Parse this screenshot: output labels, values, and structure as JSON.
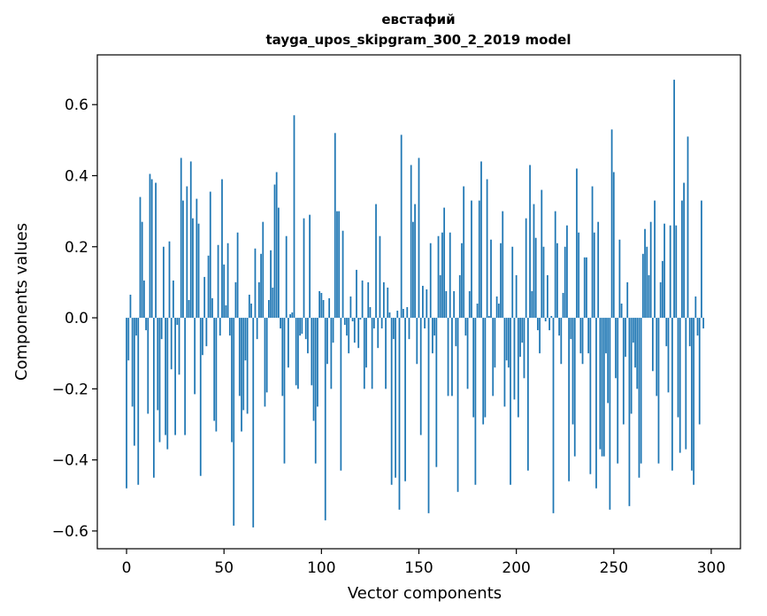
{
  "chart_data": {
    "type": "bar",
    "title": "евстафий",
    "subtitle": "tayga_upos_skipgram_300_2_2019 model",
    "xlabel": "Vector components",
    "ylabel": "Components values",
    "xlim": [
      -15,
      315
    ],
    "ylim": [
      -0.65,
      0.74
    ],
    "xticks": [
      0,
      50,
      100,
      150,
      200,
      250,
      300
    ],
    "yticks": [
      -0.6,
      -0.4,
      -0.2,
      0.0,
      0.2,
      0.4,
      0.6
    ],
    "ytick_labels": [
      "−0.6",
      "−0.4",
      "−0.2",
      "0.0",
      "0.2",
      "0.4",
      "0.6"
    ],
    "grid": false,
    "bar_color": "#1f77b4",
    "series": [
      {
        "values": [
          -0.48,
          -0.12,
          0.065,
          -0.25,
          -0.36,
          -0.05,
          -0.47,
          0.34,
          0.27,
          0.105,
          -0.035,
          -0.27,
          0.405,
          0.39,
          -0.45,
          0.38,
          -0.26,
          -0.35,
          -0.06,
          0.2,
          -0.33,
          -0.37,
          0.215,
          -0.145,
          0.105,
          -0.33,
          -0.02,
          -0.16,
          0.45,
          0.33,
          -0.33,
          0.37,
          0.05,
          0.44,
          0.28,
          -0.215,
          0.335,
          0.265,
          -0.445,
          -0.105,
          0.115,
          -0.08,
          0.175,
          0.355,
          0.055,
          -0.29,
          -0.32,
          0.205,
          -0.05,
          0.39,
          0.15,
          0.035,
          0.21,
          -0.05,
          -0.35,
          -0.585,
          0.1,
          0.24,
          -0.22,
          -0.32,
          -0.26,
          -0.12,
          -0.27,
          0.065,
          0.04,
          -0.59,
          0.195,
          -0.06,
          0.1,
          0.18,
          0.27,
          -0.25,
          -0.21,
          0.05,
          0.19,
          0.085,
          0.375,
          0.41,
          0.31,
          -0.03,
          -0.22,
          -0.41,
          0.23,
          -0.14,
          0.01,
          0.015,
          0.57,
          -0.19,
          -0.2,
          -0.05,
          -0.045,
          0.28,
          -0.06,
          -0.1,
          0.29,
          -0.19,
          -0.29,
          -0.41,
          -0.25,
          0.075,
          0.07,
          0.05,
          -0.57,
          -0.13,
          0.055,
          -0.2,
          -0.07,
          0.52,
          0.3,
          0.3,
          -0.43,
          0.245,
          -0.02,
          -0.05,
          -0.1,
          0.06,
          -0.01,
          -0.07,
          0.135,
          -0.085,
          -0.005,
          0.105,
          -0.2,
          -0.14,
          0.1,
          0.03,
          -0.2,
          -0.03,
          0.32,
          -0.085,
          0.23,
          -0.03,
          0.1,
          -0.2,
          0.085,
          0.015,
          -0.47,
          -0.06,
          -0.45,
          0.02,
          -0.54,
          0.515,
          0.025,
          -0.46,
          0.03,
          -0.06,
          0.43,
          0.27,
          0.32,
          -0.13,
          0.45,
          -0.33,
          0.09,
          -0.03,
          0.08,
          -0.55,
          0.21,
          -0.1,
          -0.05,
          -0.42,
          0.23,
          0.12,
          0.24,
          0.31,
          0.075,
          -0.22,
          0.24,
          -0.22,
          0.075,
          -0.08,
          -0.49,
          0.12,
          0.21,
          0.37,
          -0.05,
          -0.2,
          0.075,
          0.33,
          -0.28,
          -0.47,
          0.04,
          0.33,
          0.44,
          -0.3,
          -0.28,
          0.39,
          0.005,
          0.22,
          -0.22,
          -0.14,
          0.06,
          0.04,
          0.21,
          0.3,
          -0.25,
          -0.12,
          -0.14,
          -0.47,
          0.2,
          -0.23,
          0.12,
          -0.28,
          -0.11,
          -0.07,
          -0.17,
          0.28,
          -0.43,
          0.43,
          0.075,
          0.32,
          0.225,
          -0.035,
          -0.1,
          0.36,
          0.2,
          -0.01,
          0.12,
          -0.035,
          0.005,
          -0.55,
          0.3,
          0.21,
          -0.05,
          -0.13,
          0.07,
          0.2,
          0.26,
          -0.46,
          -0.06,
          -0.3,
          -0.39,
          0.42,
          0.24,
          -0.1,
          -0.13,
          0.17,
          0.17,
          -0.1,
          -0.44,
          0.37,
          0.24,
          -0.48,
          0.27,
          -0.37,
          -0.39,
          -0.39,
          -0.1,
          -0.24,
          -0.54,
          0.53,
          0.41,
          -0.17,
          -0.41,
          0.22,
          0.04,
          -0.3,
          -0.11,
          0.1,
          -0.53,
          -0.27,
          -0.07,
          -0.14,
          -0.2,
          -0.45,
          -0.41,
          0.18,
          0.25,
          0.2,
          0.12,
          0.27,
          -0.15,
          0.33,
          -0.22,
          -0.41,
          0.1,
          0.16,
          0.265,
          -0.08,
          -0.21,
          0.26,
          -0.43,
          0.67,
          0.26,
          -0.28,
          -0.38,
          0.33,
          0.38,
          -0.37,
          0.51,
          -0.08,
          -0.43,
          -0.47,
          0.06,
          -0.05,
          -0.3,
          0.33,
          -0.03
        ]
      }
    ]
  }
}
